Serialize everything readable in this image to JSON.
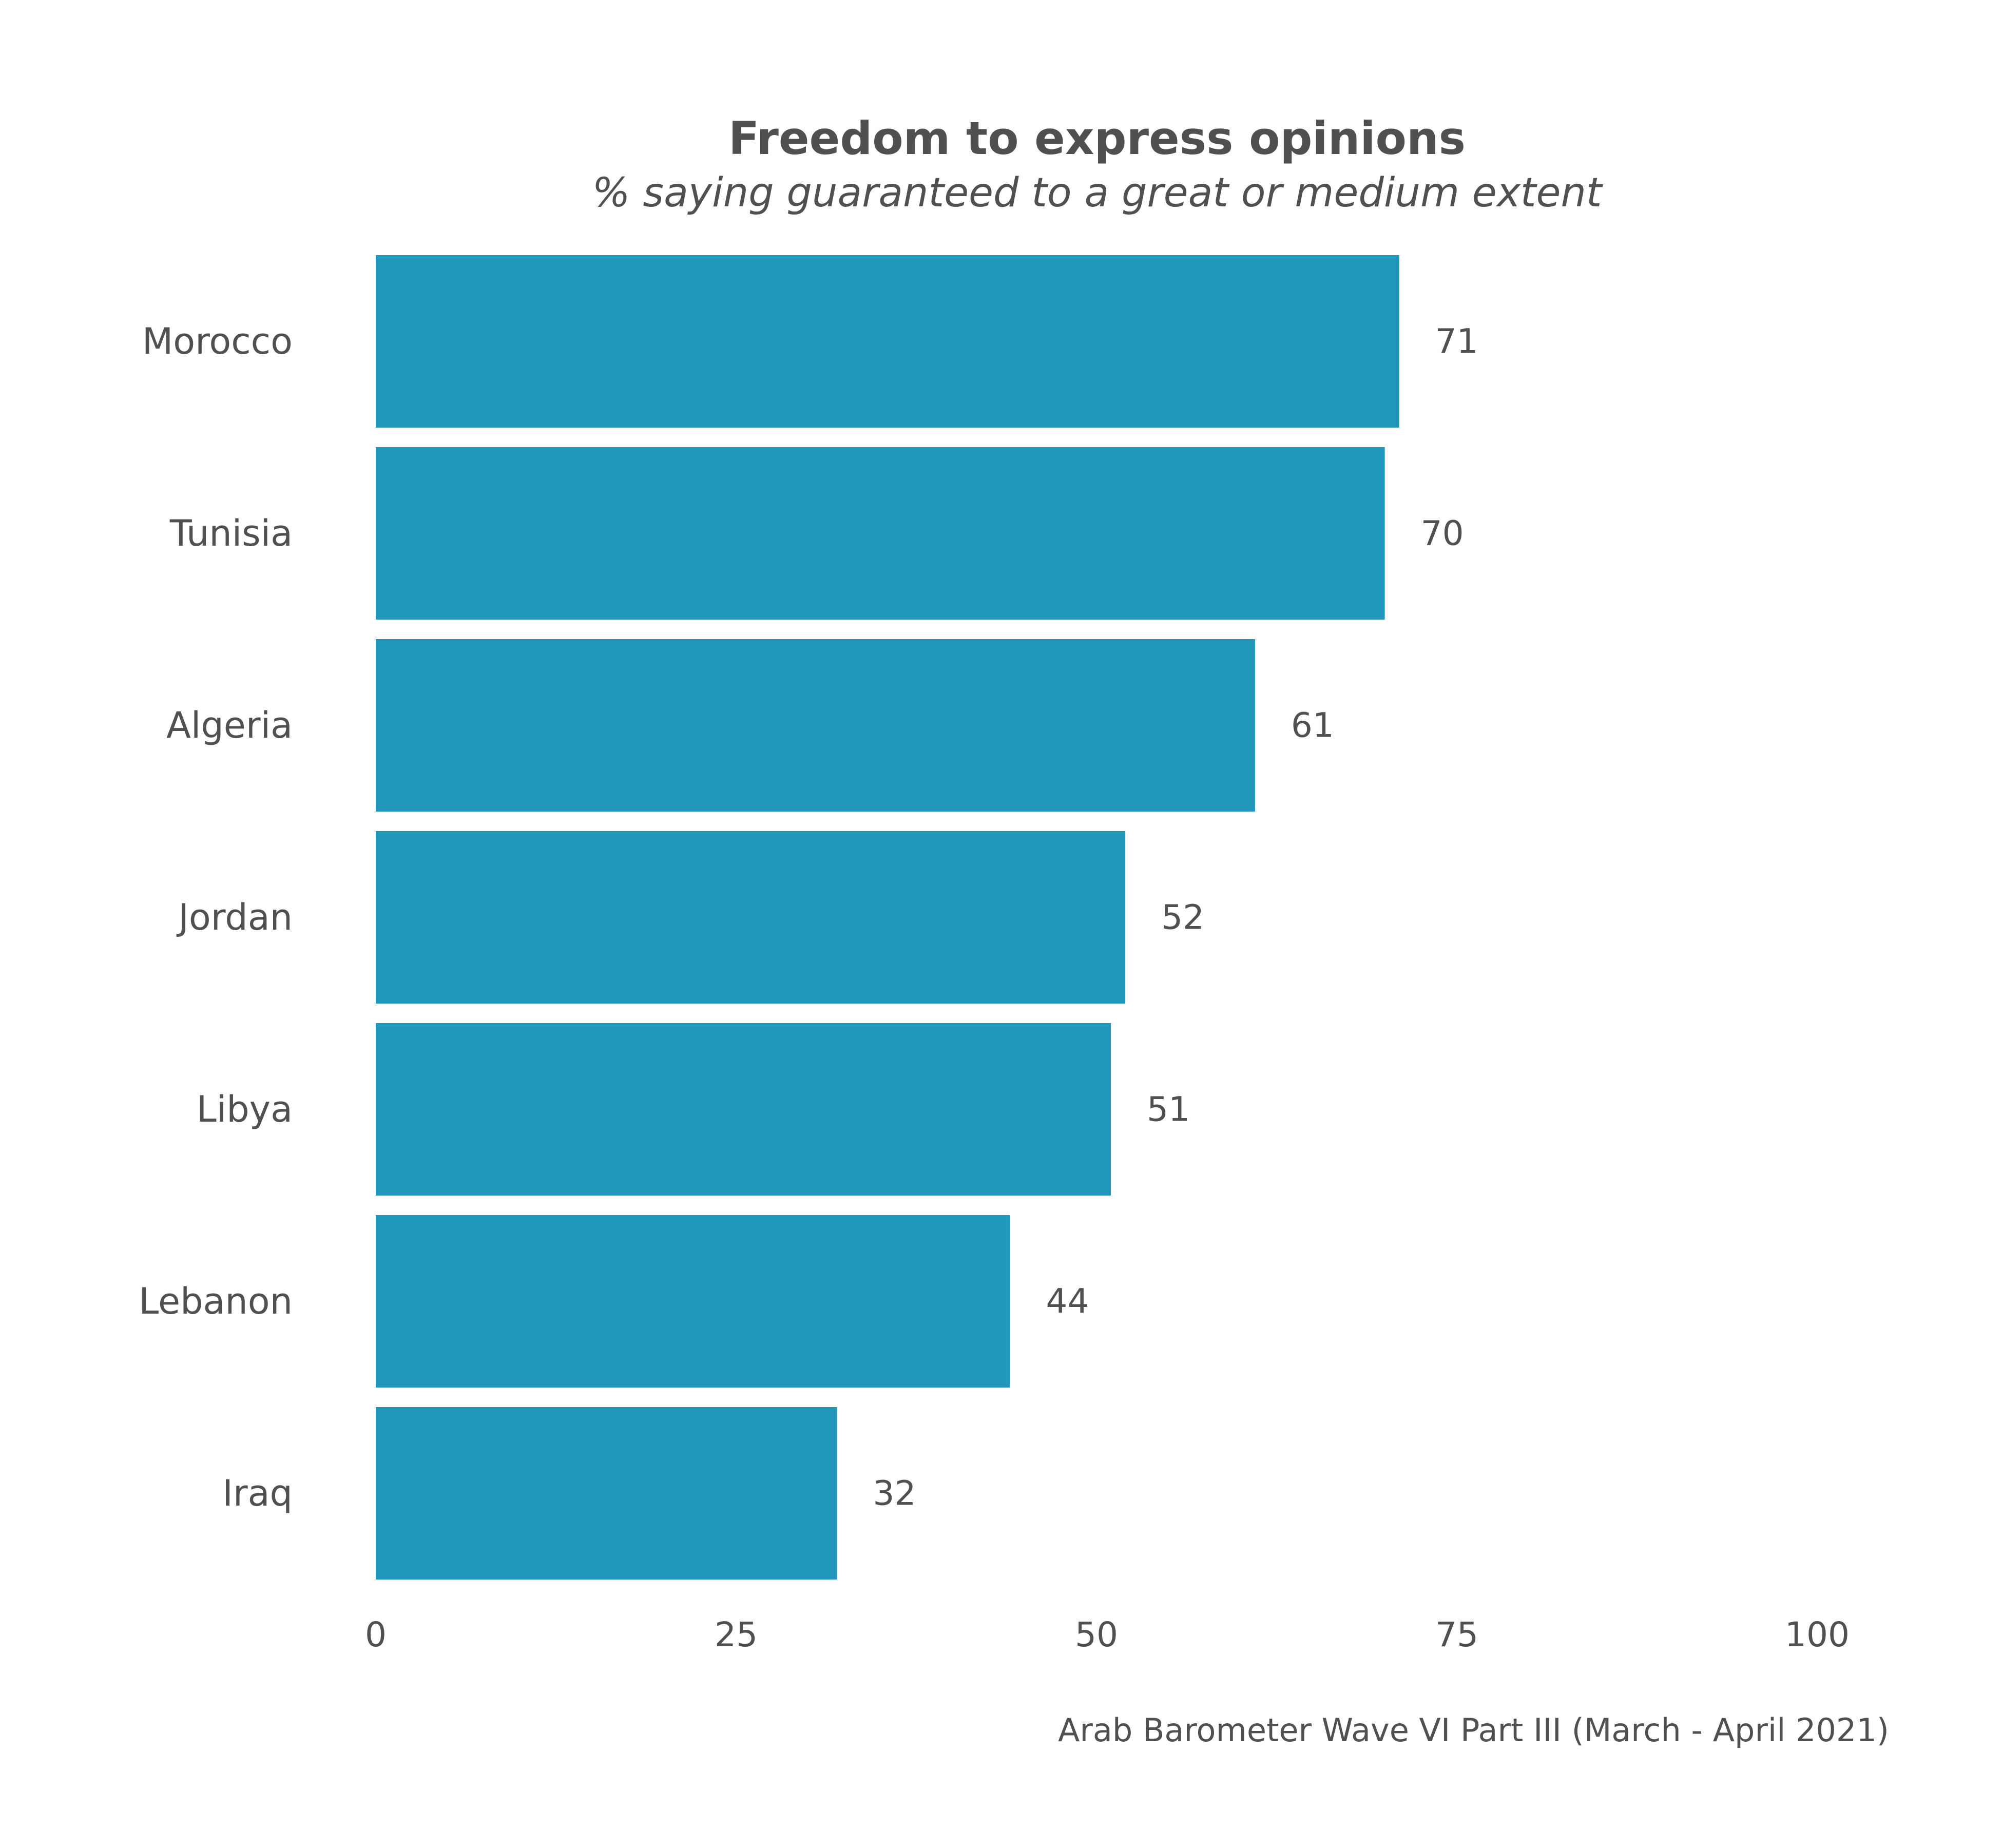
{
  "chart_data": {
    "type": "bar",
    "orientation": "horizontal",
    "title": "Freedom to express opinions",
    "subtitle": "% saying guaranteed to a great or medium extent",
    "caption": "Arab Barometer Wave VI Part III (March - April 2021)",
    "categories": [
      "Morocco",
      "Tunisia",
      "Algeria",
      "Jordan",
      "Libya",
      "Lebanon",
      "Iraq"
    ],
    "values": [
      71,
      70,
      61,
      52,
      51,
      44,
      32
    ],
    "value_labels": [
      "71",
      "70",
      "61",
      "52",
      "51",
      "44",
      "32"
    ],
    "x_ticks": [
      0,
      25,
      50,
      75,
      100
    ],
    "x_tick_labels": [
      "0",
      "25",
      "50",
      "75",
      "100"
    ],
    "xlim": [
      0,
      100
    ],
    "xlabel": "",
    "ylabel": "",
    "grid": false,
    "legend": "none",
    "bar_color": "#2196BB",
    "text_color": "#505050"
  }
}
